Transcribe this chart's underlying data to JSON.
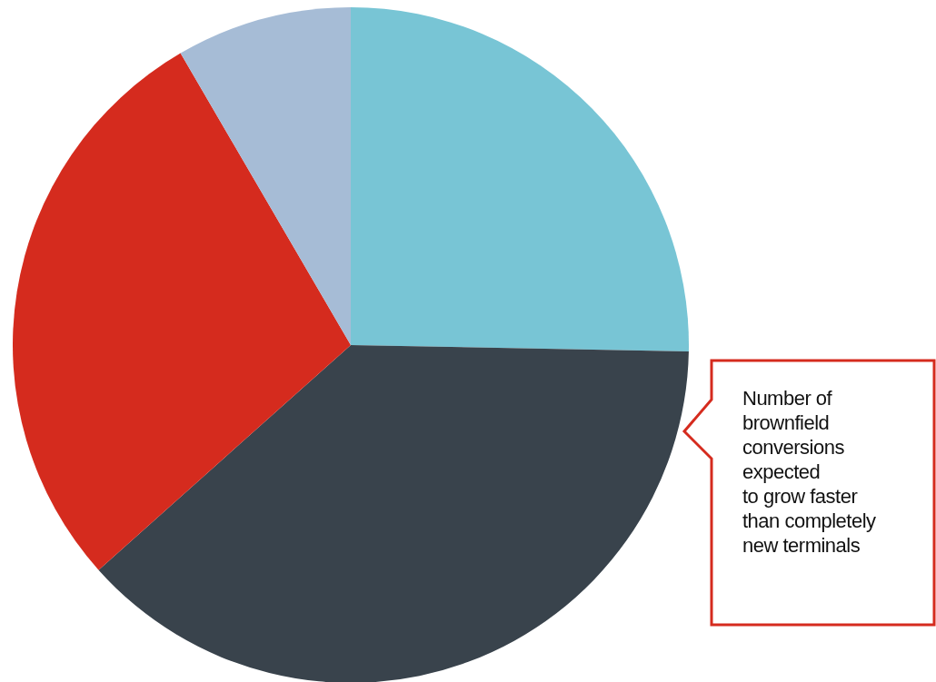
{
  "chart_data": {
    "type": "pie",
    "categories": [
      null,
      null,
      null,
      null
    ],
    "values": [
      25.3,
      38.1,
      28.2,
      8.4
    ],
    "colors": [
      "#78c5d5",
      "#39434c",
      "#d52b1e",
      "#a6bcd6"
    ],
    "annotations": [
      "Number of\nbrownfield\nconversions\nexpected\nto grow faster\nthan completely\nnew terminals"
    ]
  }
}
